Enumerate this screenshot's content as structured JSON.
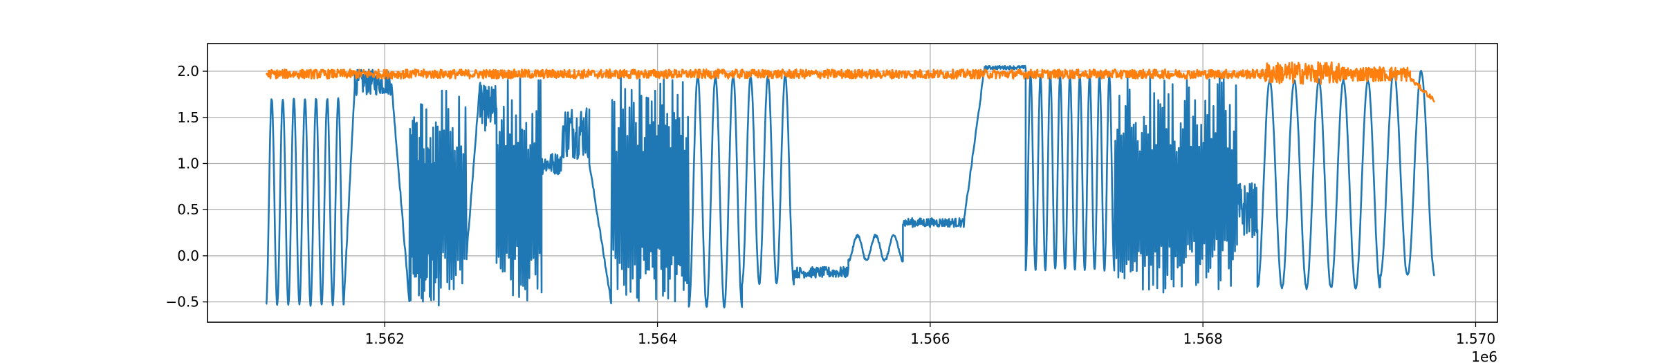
{
  "chart_data": {
    "type": "line",
    "title": "",
    "xlabel": "",
    "ylabel": "",
    "x_offset_label": "1e6",
    "xlim": [
      1560700,
      1570160
    ],
    "ylim": [
      -0.72,
      2.3
    ],
    "grid": true,
    "x_ticks": [
      1562000,
      1564000,
      1566000,
      1568000,
      1570000
    ],
    "x_tick_labels": [
      "1.562",
      "1.564",
      "1.566",
      "1.568",
      "1.570"
    ],
    "y_ticks": [
      -0.5,
      0.0,
      0.5,
      1.0,
      1.5,
      2.0
    ],
    "y_tick_labels": [
      "−0.5",
      "0.0",
      "0.5",
      "1.0",
      "1.5",
      "2.0"
    ],
    "colors": {
      "series1": "#1f77b4",
      "series2": "#ff7f0e",
      "grid": "#b0b0b0"
    },
    "series": [
      {
        "color": "#1f77b4",
        "segments": [
          {
            "x": [
              1561130,
              1561700
            ],
            "kind": "osc",
            "cycles": 7,
            "low": -0.53,
            "high": 1.7
          },
          {
            "x": [
              1561700,
              1561780
            ],
            "kind": "ramp",
            "from": -0.5,
            "to": 1.85
          },
          {
            "x": [
              1561780,
              1562050
            ],
            "kind": "noise",
            "center": 1.88,
            "amp": 0.14
          },
          {
            "x": [
              1562050,
              1562180
            ],
            "kind": "ramp",
            "from": 1.85,
            "to": -0.5
          },
          {
            "x": [
              1562180,
              1562380
            ],
            "kind": "dense",
            "cycles": 20,
            "low": -0.5,
            "high": 1.75
          },
          {
            "x": [
              1562380,
              1562600
            ],
            "kind": "dense",
            "cycles": 14,
            "low": -0.55,
            "high": 1.85
          },
          {
            "x": [
              1562600,
              1562700
            ],
            "kind": "ramp",
            "from": 0.0,
            "to": 1.9
          },
          {
            "x": [
              1562700,
              1562820
            ],
            "kind": "noise",
            "center": 1.6,
            "amp": 0.25
          },
          {
            "x": [
              1562820,
              1563150
            ],
            "kind": "dense",
            "cycles": 22,
            "low": -0.5,
            "high": 2.0
          },
          {
            "x": [
              1563150,
              1563300
            ],
            "kind": "noise",
            "center": 1.0,
            "amp": 0.12
          },
          {
            "x": [
              1563300,
              1563500
            ],
            "kind": "noise",
            "center": 1.35,
            "amp": 0.3
          },
          {
            "x": [
              1563500,
              1563660
            ],
            "kind": "ramp",
            "from": 1.0,
            "to": -0.5
          },
          {
            "x": [
              1563660,
              1563850
            ],
            "kind": "dense",
            "cycles": 12,
            "low": -0.5,
            "high": 1.95
          },
          {
            "x": [
              1563850,
              1564230
            ],
            "kind": "dense",
            "cycles": 30,
            "low": -0.5,
            "high": 1.95
          },
          {
            "x": [
              1564230,
              1564620
            ],
            "kind": "osc",
            "cycles": 3,
            "low": -0.55,
            "high": 1.95
          },
          {
            "x": [
              1564620,
              1565000
            ],
            "kind": "osc",
            "cycles": 3,
            "low": -0.3,
            "high": 1.95
          },
          {
            "x": [
              1565000,
              1565400
            ],
            "kind": "noise",
            "center": -0.18,
            "amp": 0.06
          },
          {
            "x": [
              1565400,
              1565800
            ],
            "kind": "osc",
            "cycles": 3,
            "low": -0.05,
            "high": 0.22
          },
          {
            "x": [
              1565800,
              1566250
            ],
            "kind": "noise",
            "center": 0.36,
            "amp": 0.05
          },
          {
            "x": [
              1566250,
              1566400
            ],
            "kind": "ramp",
            "from": 0.4,
            "to": 2.05
          },
          {
            "x": [
              1566400,
              1566700
            ],
            "kind": "noise",
            "center": 2.04,
            "amp": 0.02
          },
          {
            "x": [
              1566700,
              1567350
            ],
            "kind": "osc",
            "cycles": 9,
            "low": -0.15,
            "high": 1.95
          },
          {
            "x": [
              1567350,
              1568250
            ],
            "kind": "dense",
            "cycles": 60,
            "low": -0.4,
            "high": 1.95
          },
          {
            "x": [
              1568250,
              1568400
            ],
            "kind": "noise",
            "center": 0.5,
            "amp": 0.3
          },
          {
            "x": [
              1568400,
              1569300
            ],
            "kind": "osc",
            "cycles": 5,
            "low": -0.35,
            "high": 1.9
          },
          {
            "x": [
              1569300,
              1569700
            ],
            "kind": "osc",
            "cycles": 2,
            "low": -0.22,
            "high": 2.0
          }
        ]
      },
      {
        "color": "#ff7f0e",
        "segments": [
          {
            "x": [
              1561130,
              1568450
            ],
            "kind": "noise",
            "center": 1.97,
            "amp": 0.05
          },
          {
            "x": [
              1568450,
              1569000
            ],
            "kind": "noise",
            "center": 1.98,
            "amp": 0.12
          },
          {
            "x": [
              1569000,
              1569520
            ],
            "kind": "noise",
            "center": 1.97,
            "amp": 0.08
          },
          {
            "x": [
              1569520,
              1569700
            ],
            "kind": "ramp",
            "from": 1.92,
            "to": 1.68
          }
        ]
      }
    ]
  }
}
